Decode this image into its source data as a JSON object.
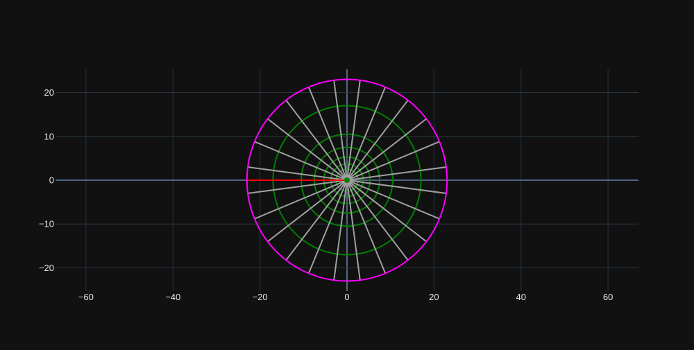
{
  "background": "#111111",
  "chart_data": {
    "type": "scatter",
    "title": "",
    "xlabel": "",
    "ylabel": "",
    "xlim": [
      -67,
      67
    ],
    "ylim": [
      -25.3,
      25.3
    ],
    "xticks": [
      -60,
      -40,
      -20,
      0,
      20,
      40,
      60
    ],
    "yticks": [
      -20,
      -10,
      0,
      10,
      20
    ],
    "xtick_labels": [
      "−60",
      "−40",
      "−20",
      "0",
      "20",
      "40",
      "60"
    ],
    "ytick_labels": [
      "−20",
      "−10",
      "0",
      "10",
      "20"
    ],
    "grid": true,
    "legend": "none",
    "colors": {
      "grid": "#283442",
      "zeroline": "#506784",
      "outer_circle": "#ff00ff",
      "rings": "#008000",
      "spokes": "#a0a0a0",
      "radius_line": "#ff0000"
    },
    "outer_circle": {
      "center": [
        0,
        0
      ],
      "radius": 23
    },
    "rings": {
      "center": [
        0,
        0
      ],
      "radii": [
        2.5,
        3.7,
        5.3,
        7.5,
        10.5,
        17
      ]
    },
    "spokes": {
      "count": 24,
      "inner_radius": 0.6,
      "outer_radius": 23,
      "start_angle_deg": 7.5,
      "step_deg": 15
    },
    "radius_line": {
      "x": [
        -23,
        0
      ],
      "y": [
        0,
        0
      ]
    }
  }
}
